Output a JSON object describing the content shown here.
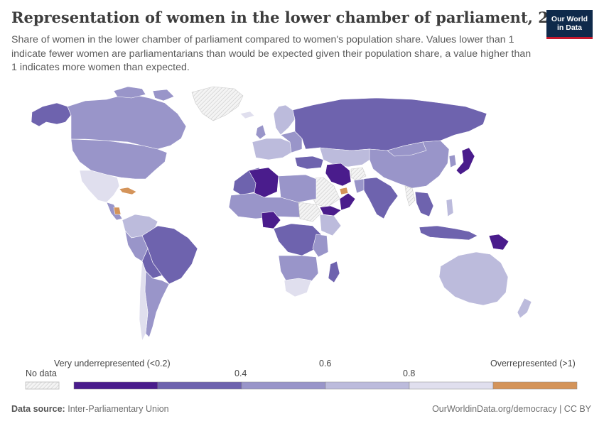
{
  "header": {
    "title": "Representation of women in the lower chamber of parliament, 2024",
    "subtitle": "Share of women in the lower chamber of parliament compared to women's population share. Values lower than 1 indicate fewer women are parliamentarians than would be expected given their population share, a value higher than 1 indicates more women than expected."
  },
  "logo": {
    "line1": "Our World",
    "line2": "in Data"
  },
  "legend": {
    "no_data": "No data",
    "tick_labels": [
      "Very underrepresented (<0.2)",
      "0.4",
      "0.6",
      "0.8",
      "Overrepresented (>1)"
    ],
    "bins": [
      {
        "from": 0.0,
        "to": 0.2,
        "color": "#4a1c8c"
      },
      {
        "from": 0.2,
        "to": 0.4,
        "color": "#6e63ae"
      },
      {
        "from": 0.4,
        "to": 0.6,
        "color": "#9995c9"
      },
      {
        "from": 0.6,
        "to": 0.8,
        "color": "#bcbbdc"
      },
      {
        "from": 0.8,
        "to": 1.0,
        "color": "#e0dfee"
      },
      {
        "from": 1.0,
        "to": null,
        "color": "#d4945a"
      }
    ]
  },
  "footer": {
    "source_label": "Data source:",
    "source": "Inter-Parliamentary Union",
    "url": "OurWorldinData.org/democracy | CC BY"
  }
}
